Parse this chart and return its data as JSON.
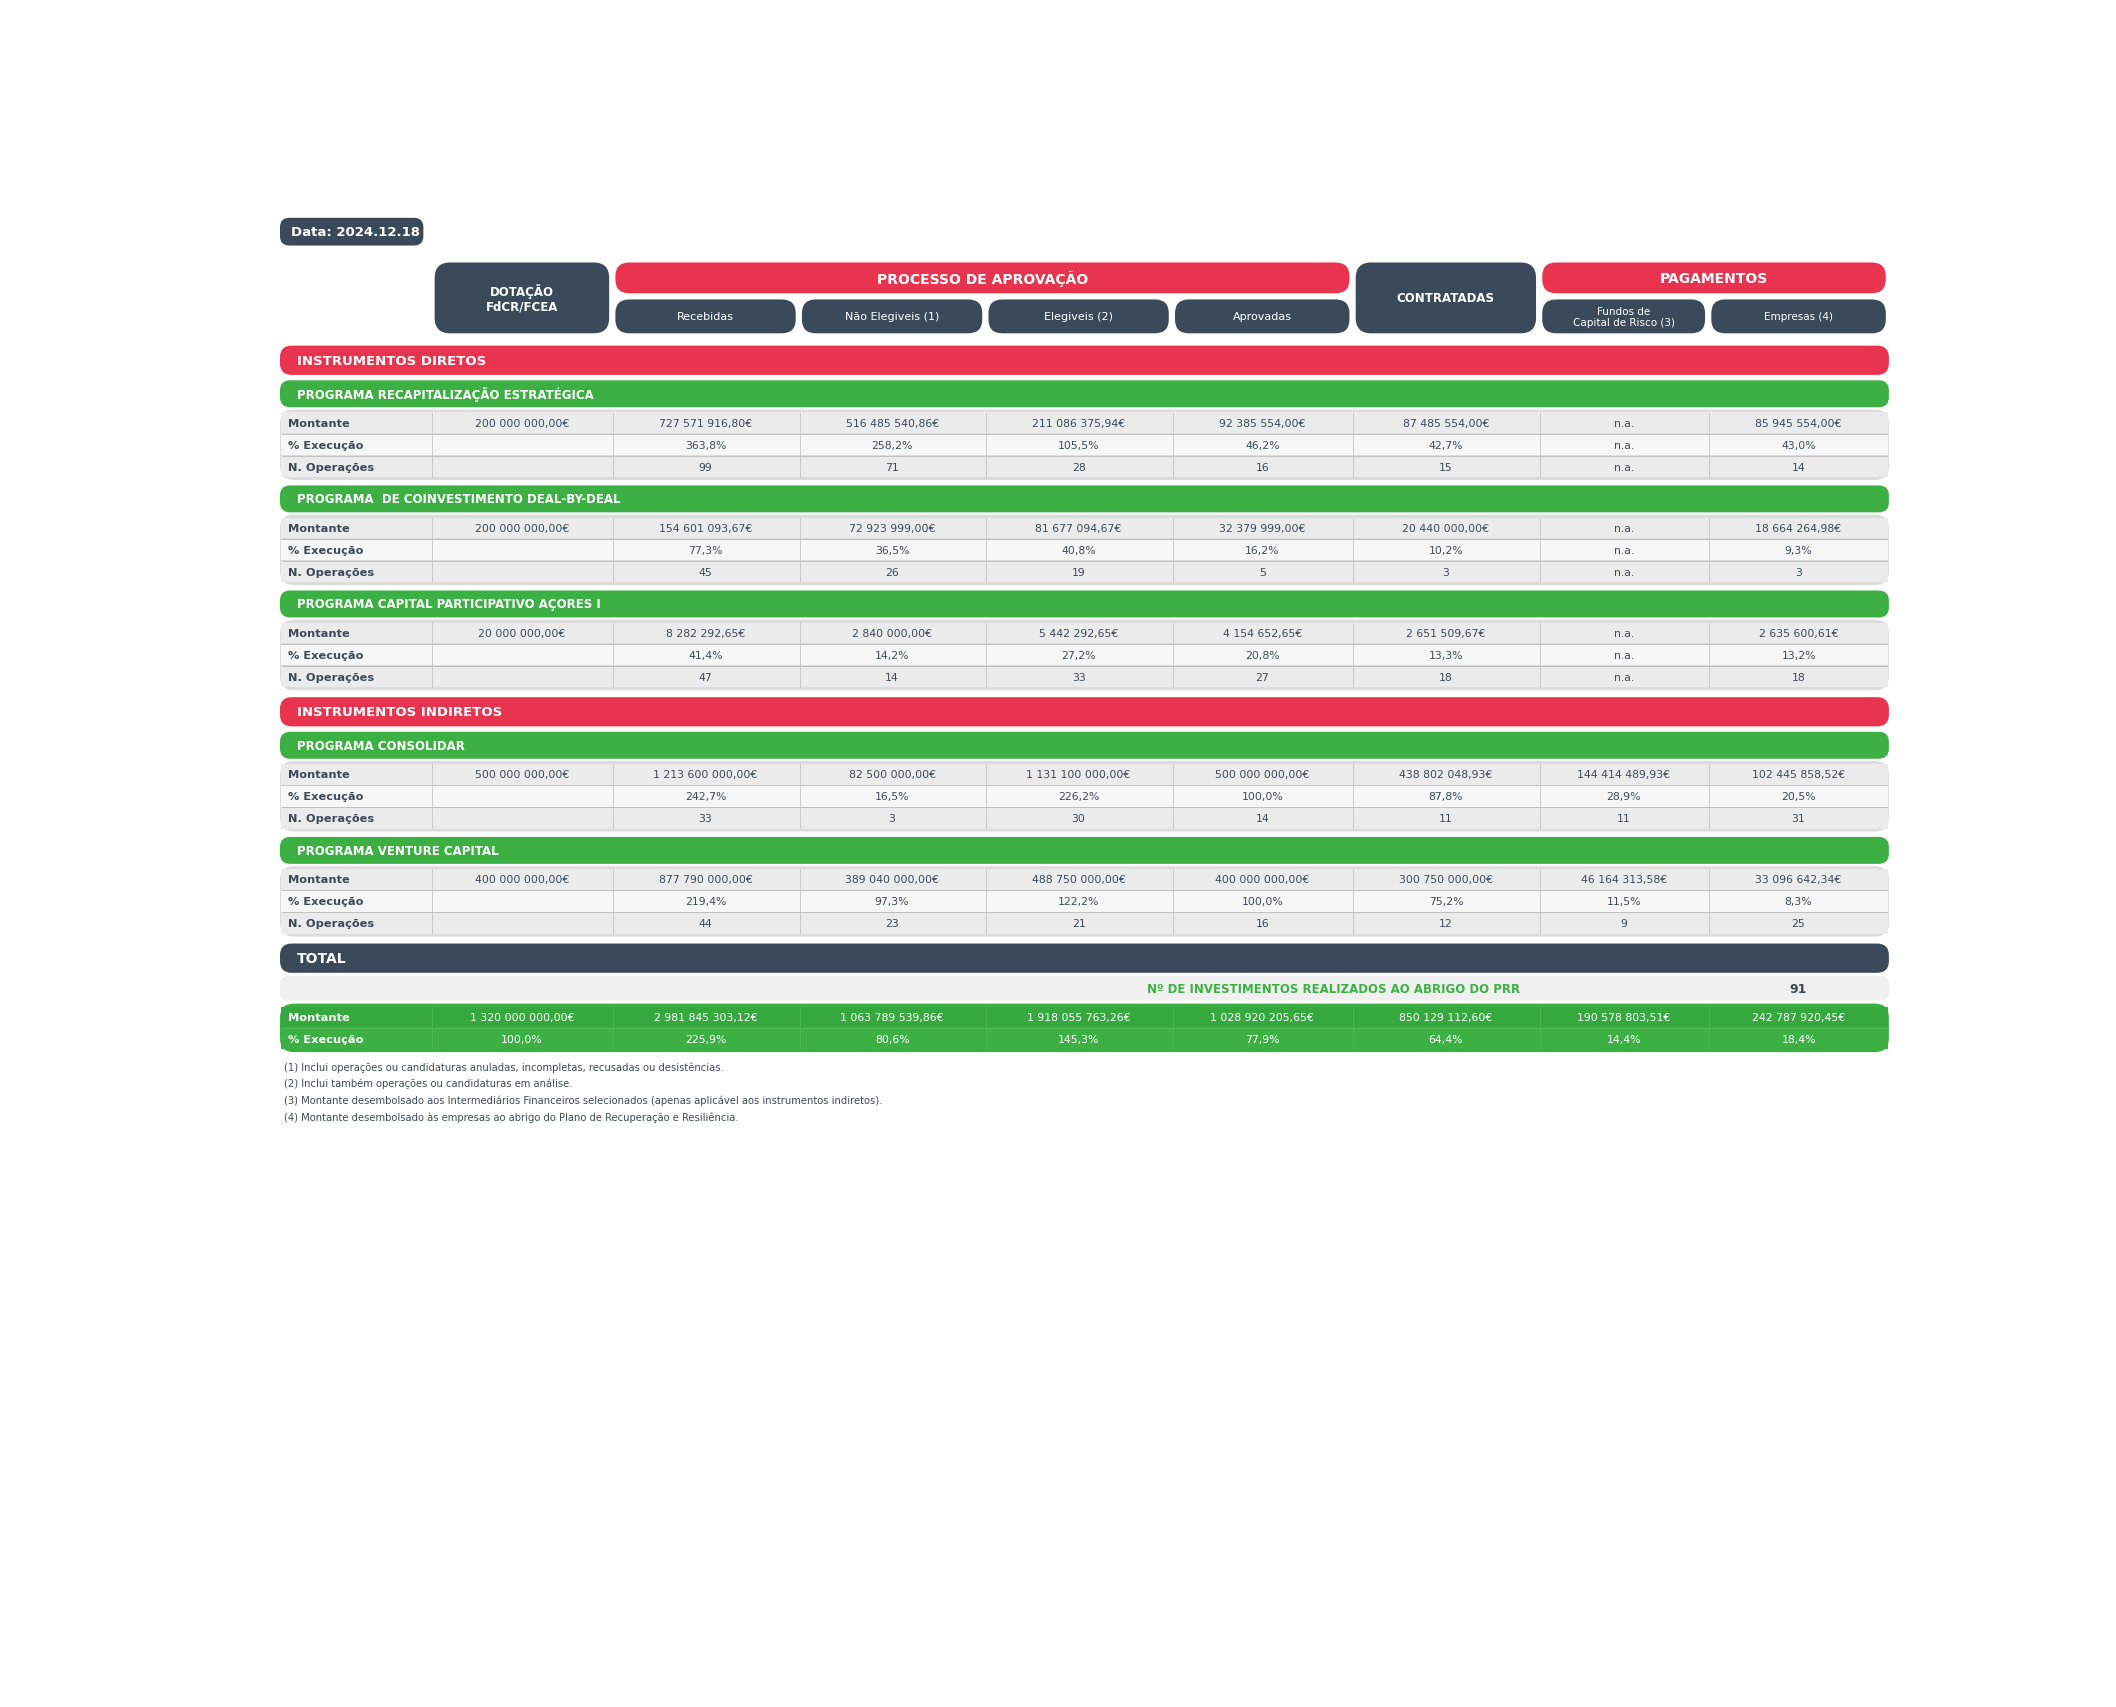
{
  "date_label": "Data: 2024.12.18",
  "colors": {
    "red": "#E8344E",
    "green": "#3CB043",
    "dark_slate": "#3B4A5A",
    "light_gray": "#F0F0F0",
    "white": "#FFFFFF",
    "text_dark": "#3B4A5A",
    "border": "#CCCCCC"
  },
  "header_row1": {
    "dotacao": "DOTAÇÃO\nFdCR/FCEA",
    "processo_label": "PROCESSO DE APROVAÇÃO",
    "contratadas": "CONTRATADAS",
    "pagamentos_label": "PAGAMENTOS"
  },
  "header_row2": {
    "recebidas": "Recebidas",
    "nao_elegiveis": "Não Elegiveis (1)",
    "elegiveis": "Elegiveis (2)",
    "aprovadas": "Aprovadas",
    "fundos": "Fundos de\nCapital de Risco (3)",
    "empresas": "Empresas (4)"
  },
  "section_diretos": "INSTRUMENTOS DIRETOS",
  "section_indiretos": "INSTRUMENTOS INDIRETOS",
  "programs": [
    {
      "name": "PROGRAMA RECAPITALIZAÇÃO ESTRATÉGICA",
      "type": "direct",
      "rows": [
        {
          "label": "Montante",
          "dotacao": "200 000 000,00€",
          "recebidas": "727 571 916,80€",
          "nao_elegiveis": "516 485 540,86€",
          "elegiveis": "211 086 375,94€",
          "aprovadas": "92 385 554,00€",
          "contratadas": "87 485 554,00€",
          "fundos": "n.a.",
          "empresas": "85 945 554,00€"
        },
        {
          "label": "% Execução",
          "dotacao": "",
          "recebidas": "363,8%",
          "nao_elegiveis": "258,2%",
          "elegiveis": "105,5%",
          "aprovadas": "46,2%",
          "contratadas": "42,7%",
          "fundos": "n.a.",
          "empresas": "43,0%"
        },
        {
          "label": "N. Operações",
          "dotacao": "",
          "recebidas": "99",
          "nao_elegiveis": "71",
          "elegiveis": "28",
          "aprovadas": "16",
          "contratadas": "15",
          "fundos": "n.a.",
          "empresas": "14"
        }
      ]
    },
    {
      "name": "PROGRAMA  DE COINVESTIMENTO DEAL-BY-DEAL",
      "type": "direct",
      "rows": [
        {
          "label": "Montante",
          "dotacao": "200 000 000,00€",
          "recebidas": "154 601 093,67€",
          "nao_elegiveis": "72 923 999,00€",
          "elegiveis": "81 677 094,67€",
          "aprovadas": "32 379 999,00€",
          "contratadas": "20 440 000,00€",
          "fundos": "n.a.",
          "empresas": "18 664 264,98€"
        },
        {
          "label": "% Execução",
          "dotacao": "",
          "recebidas": "77,3%",
          "nao_elegiveis": "36,5%",
          "elegiveis": "40,8%",
          "aprovadas": "16,2%",
          "contratadas": "10,2%",
          "fundos": "n.a.",
          "empresas": "9,3%"
        },
        {
          "label": "N. Operações",
          "dotacao": "",
          "recebidas": "45",
          "nao_elegiveis": "26",
          "elegiveis": "19",
          "aprovadas": "5",
          "contratadas": "3",
          "fundos": "n.a.",
          "empresas": "3"
        }
      ]
    },
    {
      "name": "PROGRAMA CAPITAL PARTICIPATIVO AÇORES I",
      "type": "direct",
      "rows": [
        {
          "label": "Montante",
          "dotacao": "20 000 000,00€",
          "recebidas": "8 282 292,65€",
          "nao_elegiveis": "2 840 000,00€",
          "elegiveis": "5 442 292,65€",
          "aprovadas": "4 154 652,65€",
          "contratadas": "2 651 509,67€",
          "fundos": "n.a.",
          "empresas": "2 635 600,61€"
        },
        {
          "label": "% Execução",
          "dotacao": "",
          "recebidas": "41,4%",
          "nao_elegiveis": "14,2%",
          "elegiveis": "27,2%",
          "aprovadas": "20,8%",
          "contratadas": "13,3%",
          "fundos": "n.a.",
          "empresas": "13,2%"
        },
        {
          "label": "N. Operações",
          "dotacao": "",
          "recebidas": "47",
          "nao_elegiveis": "14",
          "elegiveis": "33",
          "aprovadas": "27",
          "contratadas": "18",
          "fundos": "n.a.",
          "empresas": "18"
        }
      ]
    },
    {
      "name": "PROGRAMA CONSOLIDAR",
      "type": "indirect",
      "rows": [
        {
          "label": "Montante",
          "dotacao": "500 000 000,00€",
          "recebidas": "1 213 600 000,00€",
          "nao_elegiveis": "82 500 000,00€",
          "elegiveis": "1 131 100 000,00€",
          "aprovadas": "500 000 000,00€",
          "contratadas": "438 802 048,93€",
          "fundos": "144 414 489,93€",
          "empresas": "102 445 858,52€"
        },
        {
          "label": "% Execução",
          "dotacao": "",
          "recebidas": "242,7%",
          "nao_elegiveis": "16,5%",
          "elegiveis": "226,2%",
          "aprovadas": "100,0%",
          "contratadas": "87,8%",
          "fundos": "28,9%",
          "empresas": "20,5%"
        },
        {
          "label": "N. Operações",
          "dotacao": "",
          "recebidas": "33",
          "nao_elegiveis": "3",
          "elegiveis": "30",
          "aprovadas": "14",
          "contratadas": "11",
          "fundos": "11",
          "empresas": "31"
        }
      ]
    },
    {
      "name": "PROGRAMA VENTURE CAPITAL",
      "type": "indirect",
      "rows": [
        {
          "label": "Montante",
          "dotacao": "400 000 000,00€",
          "recebidas": "877 790 000,00€",
          "nao_elegiveis": "389 040 000,00€",
          "elegiveis": "488 750 000,00€",
          "aprovadas": "400 000 000,00€",
          "contratadas": "300 750 000,00€",
          "fundos": "46 164 313,58€",
          "empresas": "33 096 642,34€"
        },
        {
          "label": "% Execução",
          "dotacao": "",
          "recebidas": "219,4%",
          "nao_elegiveis": "97,3%",
          "elegiveis": "122,2%",
          "aprovadas": "100,0%",
          "contratadas": "75,2%",
          "fundos": "11,5%",
          "empresas": "8,3%"
        },
        {
          "label": "N. Operações",
          "dotacao": "",
          "recebidas": "44",
          "nao_elegiveis": "23",
          "elegiveis": "21",
          "aprovadas": "16",
          "contratadas": "12",
          "fundos": "9",
          "empresas": "25"
        }
      ]
    }
  ],
  "total_section": {
    "label": "TOTAL",
    "prr_label": "Nº DE INVESTIMENTOS REALIZADOS AO ABRIGO DO PRR",
    "prr_value": "91",
    "rows": [
      {
        "label": "Montante",
        "dotacao": "1 320 000 000,00€",
        "recebidas": "2 981 845 303,12€",
        "nao_elegiveis": "1 063 789 539,86€",
        "elegiveis": "1 918 055 763,26€",
        "aprovadas": "1 028 920 205,65€",
        "contratadas": "850 129 112,60€",
        "fundos": "190 578 803,51€",
        "empresas": "242 787 920,45€"
      },
      {
        "label": "% Execução",
        "dotacao": "100,0%",
        "recebidas": "225,9%",
        "nao_elegiveis": "80,6%",
        "elegiveis": "145,3%",
        "aprovadas": "77,9%",
        "contratadas": "64,4%",
        "fundos": "14,4%",
        "empresas": "18,4%"
      }
    ]
  },
  "footnotes": [
    "(1) Inclui operações ou candidaturas anuladas, incompletas, recusadas ou desistências.",
    "(2) Inclui também operações ou candidaturas em análise.",
    "(3) Montante desembolsado aos Intermediários Financeiros selecionados (apenas aplicável aos instrumentos indiretos).",
    "(4) Montante desembolsado às empresas ao abrigo do Plano de Recuperação e Resiliência."
  ]
}
